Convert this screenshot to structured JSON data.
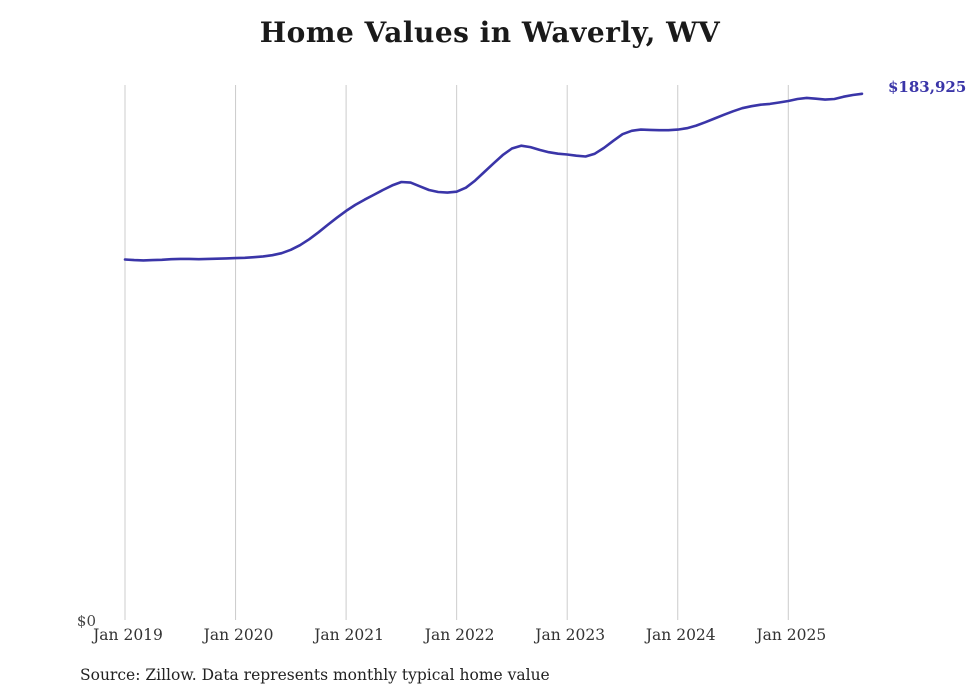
{
  "page": {
    "title": "Home Values in Waverly, WV",
    "source_note": "Source: Zillow. Data represents monthly typical home value"
  },
  "chart_data": {
    "type": "line",
    "title": "Home Values in Waverly, WV",
    "series_name": "Monthly typical home value",
    "x": [
      "2019-01",
      "2019-02",
      "2019-03",
      "2019-04",
      "2019-05",
      "2019-06",
      "2019-07",
      "2019-08",
      "2019-09",
      "2019-10",
      "2019-11",
      "2019-12",
      "2020-01",
      "2020-02",
      "2020-03",
      "2020-04",
      "2020-05",
      "2020-06",
      "2020-07",
      "2020-08",
      "2020-09",
      "2020-10",
      "2020-11",
      "2020-12",
      "2021-01",
      "2021-02",
      "2021-03",
      "2021-04",
      "2021-05",
      "2021-06",
      "2021-07",
      "2021-08",
      "2021-09",
      "2021-10",
      "2021-11",
      "2021-12",
      "2022-01",
      "2022-02",
      "2022-03",
      "2022-04",
      "2022-05",
      "2022-06",
      "2022-07",
      "2022-08",
      "2022-09",
      "2022-10",
      "2022-11",
      "2022-12",
      "2023-01",
      "2023-02",
      "2023-03",
      "2023-04",
      "2023-05",
      "2023-06",
      "2023-07",
      "2023-08",
      "2023-09",
      "2023-10",
      "2023-11",
      "2023-12",
      "2024-01",
      "2024-02",
      "2024-03",
      "2024-04",
      "2024-05",
      "2024-06",
      "2024-07",
      "2024-08",
      "2024-09",
      "2024-10",
      "2024-11",
      "2024-12",
      "2025-01",
      "2025-02",
      "2025-03",
      "2025-04",
      "2025-05",
      "2025-06",
      "2025-07",
      "2025-08",
      "2025-09"
    ],
    "values": [
      126000,
      125800,
      125700,
      125800,
      125900,
      126100,
      126200,
      126200,
      126100,
      126200,
      126300,
      126400,
      126500,
      126600,
      126800,
      127100,
      127500,
      128200,
      129400,
      131000,
      133100,
      135500,
      138100,
      140600,
      143000,
      145100,
      146900,
      148600,
      150300,
      151900,
      153100,
      152900,
      151600,
      150300,
      149600,
      149400,
      149700,
      151100,
      153600,
      156600,
      159600,
      162500,
      164800,
      165800,
      165300,
      164300,
      163500,
      163000,
      162700,
      162300,
      162000,
      163000,
      165000,
      167500,
      169800,
      171000,
      171400,
      171300,
      171200,
      171200,
      171400,
      171900,
      172800,
      174000,
      175300,
      176600,
      177800,
      178900,
      179600,
      180100,
      180400,
      180900,
      181400,
      182100,
      182500,
      182200,
      181900,
      182100,
      182900,
      183500,
      183925
    ],
    "x_tick_labels": [
      "Jan 2019",
      "Jan 2020",
      "Jan 2021",
      "Jan 2022",
      "Jan 2023",
      "Jan 2024",
      "Jan 2025"
    ],
    "y_axis_label": "$0",
    "end_label": "$183,925",
    "ylim": [
      0,
      187000
    ],
    "xlabel": "",
    "ylabel": "",
    "legend": "none",
    "grid": "vertical-only",
    "line_color": "#3a35a8",
    "grid_color": "#cccccc",
    "tick_label_color": "#333333"
  }
}
